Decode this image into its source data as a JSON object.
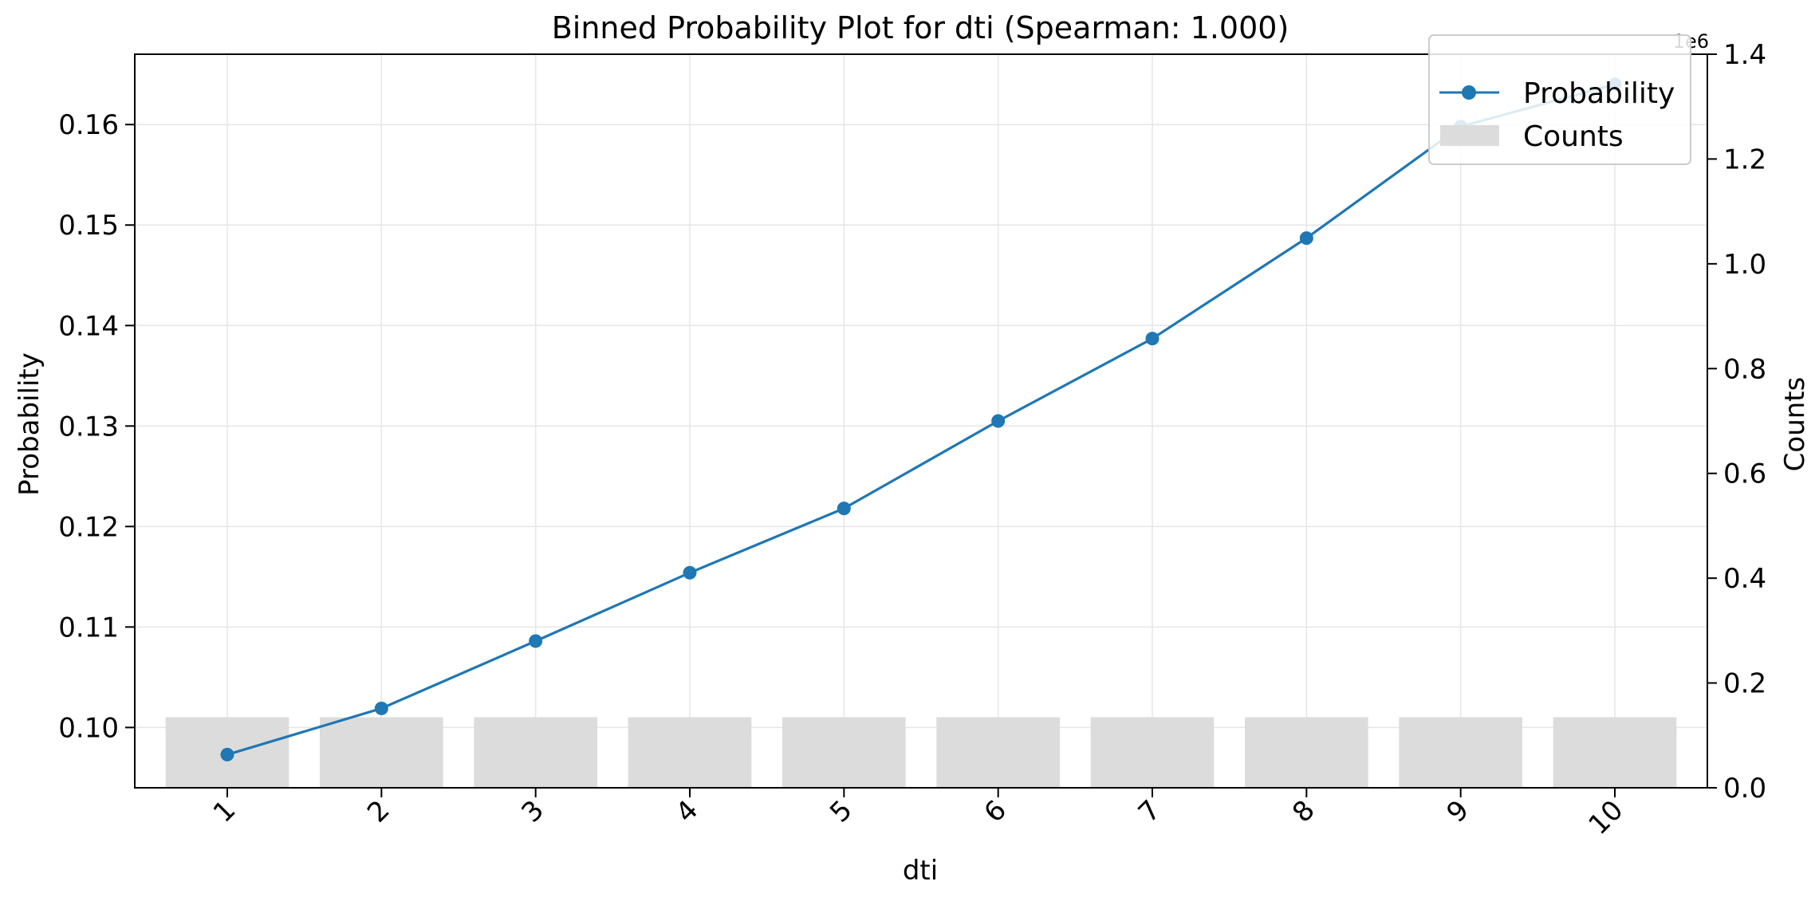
{
  "chart_data": {
    "type": "line",
    "title": "Binned Probability Plot for dti (Spearman: 1.000)",
    "xlabel": "dti",
    "ylabel": "Probability",
    "y2label": "Counts",
    "y2_offset_label": "1e6",
    "categories": [
      "1",
      "2",
      "3",
      "4",
      "5",
      "6",
      "7",
      "8",
      "9",
      "10"
    ],
    "ylim": [
      0.094,
      0.167
    ],
    "y2lim": [
      0,
      1.4
    ],
    "yticks": [
      "0.10",
      "0.11",
      "0.12",
      "0.13",
      "0.14",
      "0.15",
      "0.16"
    ],
    "y2ticks": [
      "0.0",
      "0.2",
      "0.4",
      "0.6",
      "0.8",
      "1.0",
      "1.2",
      "1.4"
    ],
    "series": [
      {
        "name": "Probability",
        "axis": "left",
        "kind": "line",
        "color": "#1f77b4",
        "values": [
          0.0973,
          0.1019,
          0.1086,
          0.1154,
          0.1218,
          0.1305,
          0.1387,
          0.1487,
          0.1598,
          0.164
        ]
      },
      {
        "name": "Counts",
        "axis": "right",
        "kind": "bar",
        "color": "#dcdcdc",
        "values": [
          0.1347,
          0.1347,
          0.1347,
          0.1347,
          0.1347,
          0.1347,
          0.1347,
          0.1347,
          0.1347,
          0.1347
        ]
      }
    ],
    "grid": true,
    "legend": "top-right"
  }
}
